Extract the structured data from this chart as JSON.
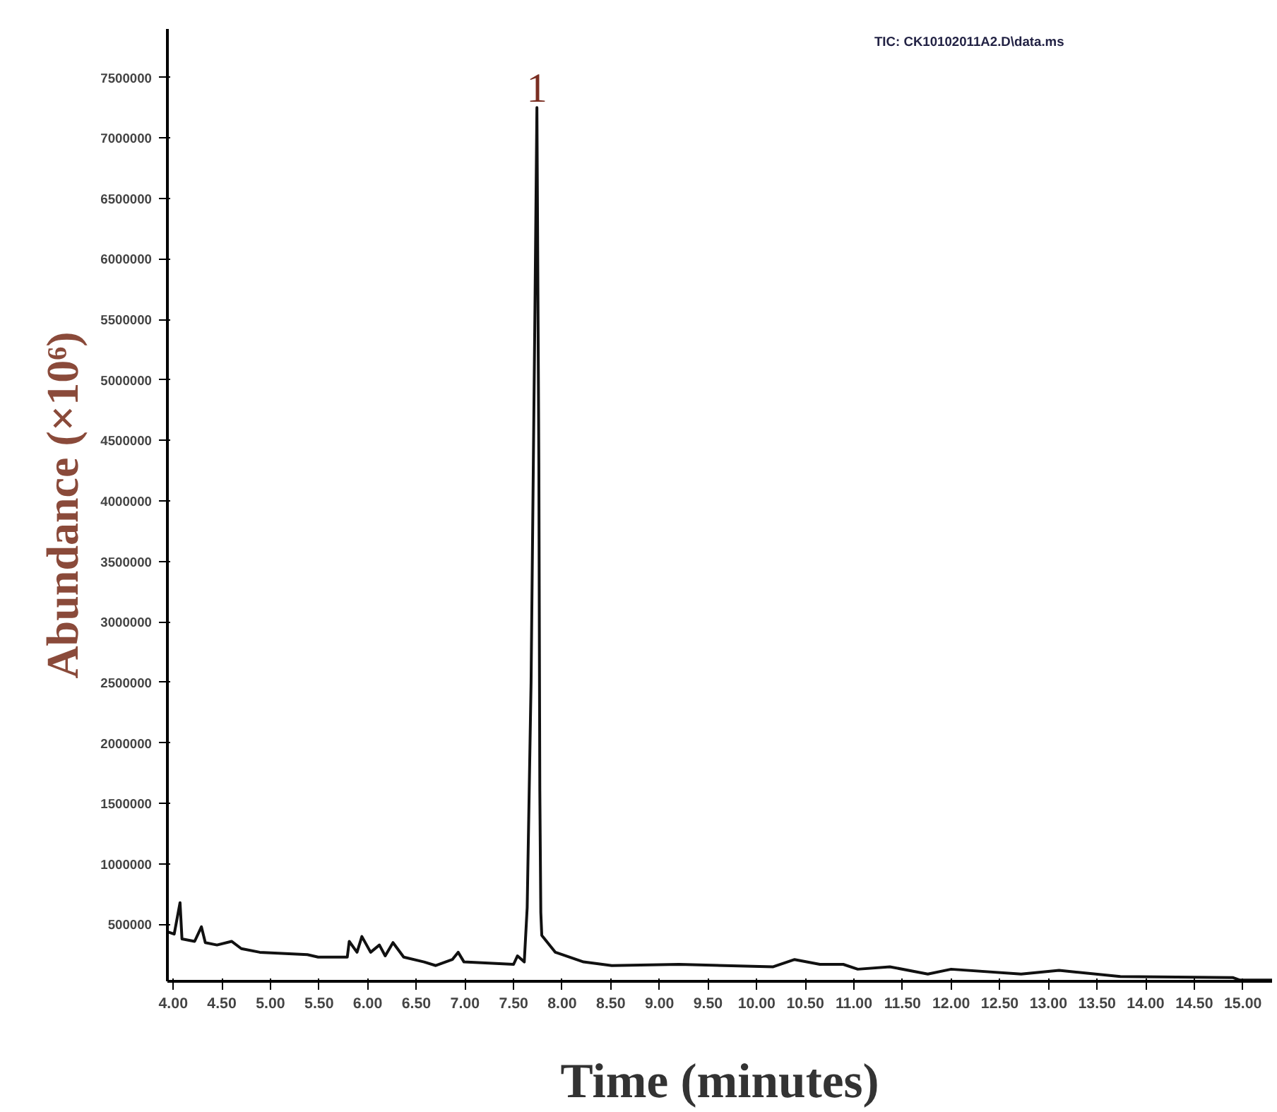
{
  "chart_data": {
    "type": "line",
    "xlabel": "Time (minutes)",
    "ylabel": "Abundance (×10⁶)",
    "annotations": [
      "TIC: CK10102011A2.D\\data.ms",
      {
        "text": "1",
        "x": 7.74,
        "y": 7250000
      }
    ],
    "x": [
      3.94,
      4.01,
      4.07,
      4.09,
      4.22,
      4.29,
      4.33,
      4.45,
      4.6,
      4.7,
      4.89,
      5.38,
      5.49,
      5.79,
      5.81,
      5.89,
      5.94,
      6.03,
      6.12,
      6.18,
      6.26,
      6.37,
      6.58,
      6.7,
      6.87,
      6.93,
      6.99,
      7.5,
      7.54,
      7.61,
      7.64,
      7.68,
      7.72,
      7.74,
      7.76,
      7.77,
      7.78,
      7.79,
      7.93,
      8.22,
      8.51,
      9.2,
      10.17,
      10.24,
      10.39,
      10.65,
      10.89,
      11.04,
      11.37,
      11.76,
      12.0,
      12.72,
      13.11,
      13.74,
      14.9,
      14.97,
      15.3
    ],
    "series": [
      {
        "color": "#111111",
        "values": [
          440000,
          420000,
          680000,
          380000,
          360000,
          480000,
          350000,
          330000,
          360000,
          300000,
          270000,
          250000,
          230000,
          230000,
          360000,
          270000,
          400000,
          270000,
          330000,
          240000,
          350000,
          230000,
          190000,
          160000,
          210000,
          270000,
          190000,
          170000,
          240000,
          190000,
          640000,
          2500000,
          5600000,
          7250000,
          4300000,
          1600000,
          600000,
          410000,
          270000,
          190000,
          160000,
          170000,
          150000,
          170000,
          210000,
          170000,
          170000,
          130000,
          150000,
          90000,
          130000,
          90000,
          120000,
          70000,
          60000,
          40000,
          40000
        ]
      }
    ],
    "xlim": [
      3.94,
      15.3
    ],
    "ylim": [
      30000,
      7900000
    ],
    "xticks": [
      {
        "value": 4,
        "label": "4.00"
      },
      {
        "value": 4.5,
        "label": "4.50"
      },
      {
        "value": 5,
        "label": "5.00"
      },
      {
        "value": 5.5,
        "label": "5.50"
      },
      {
        "value": 6,
        "label": "6.00"
      },
      {
        "value": 6.5,
        "label": "6.50"
      },
      {
        "value": 7,
        "label": "7.00"
      },
      {
        "value": 7.5,
        "label": "7.50"
      },
      {
        "value": 8,
        "label": "8.00"
      },
      {
        "value": 8.5,
        "label": "8.50"
      },
      {
        "value": 9,
        "label": "9.00"
      },
      {
        "value": 9.5,
        "label": "9.50"
      },
      {
        "value": 10,
        "label": "10.00"
      },
      {
        "value": 10.5,
        "label": "10.50"
      },
      {
        "value": 11,
        "label": "11.00"
      },
      {
        "value": 11.5,
        "label": "11.50"
      },
      {
        "value": 12,
        "label": "12.00"
      },
      {
        "value": 12.5,
        "label": "12.50"
      },
      {
        "value": 13,
        "label": "13.00"
      },
      {
        "value": 13.5,
        "label": "13.50"
      },
      {
        "value": 14,
        "label": "14.00"
      },
      {
        "value": 14.5,
        "label": "14.50"
      },
      {
        "value": 15,
        "label": "15.00"
      }
    ],
    "yticks": [
      500000,
      1000000,
      1500000,
      2000000,
      2500000,
      3000000,
      3500000,
      4000000,
      4500000,
      5000000,
      5500000,
      6000000,
      6500000,
      7000000,
      7500000
    ],
    "grid": false,
    "marker": "none",
    "line_style": "solid"
  }
}
